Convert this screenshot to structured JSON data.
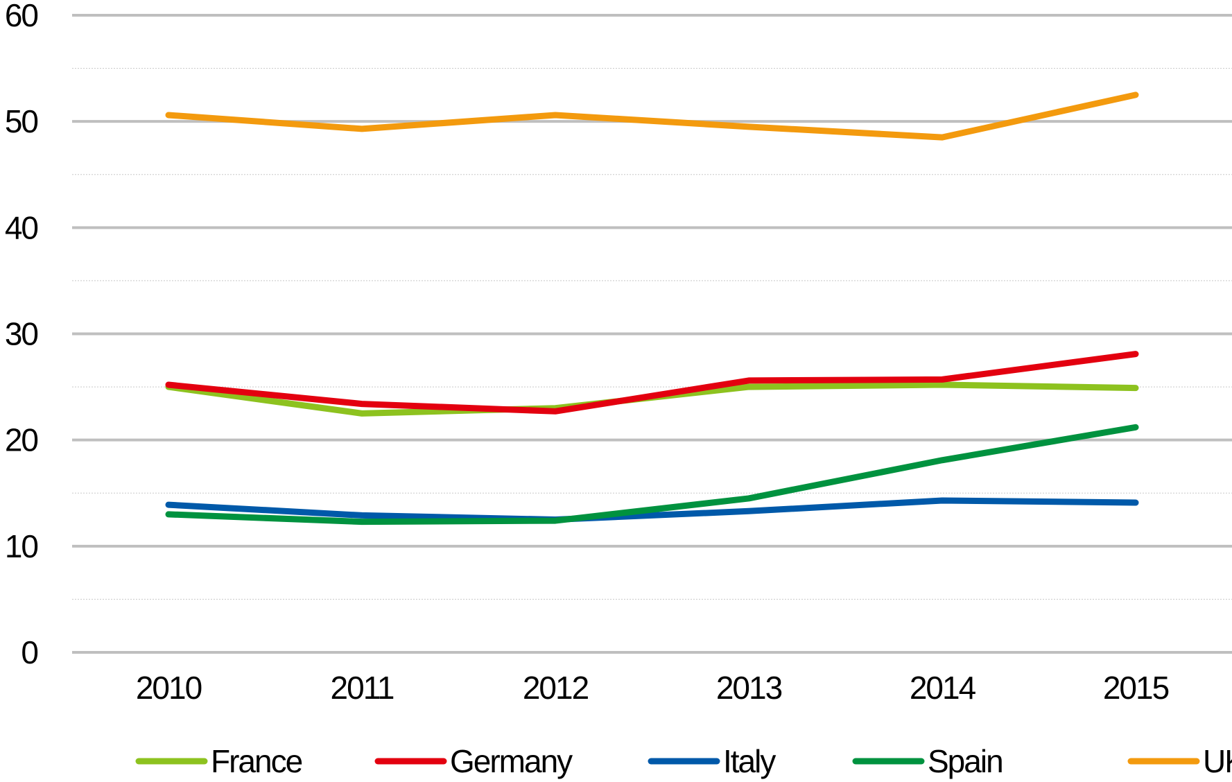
{
  "chart_data": {
    "type": "line",
    "title": "",
    "xlabel": "",
    "ylabel": "",
    "categories": [
      "2010",
      "2011",
      "2012",
      "2013",
      "2014",
      "2015"
    ],
    "ylim": [
      0,
      60
    ],
    "y_ticks": [
      "0",
      "10",
      "20",
      "30",
      "40",
      "50",
      "60"
    ],
    "grid": "horizontal major and dotted minor",
    "legend_position": "bottom",
    "series": [
      {
        "name": "France",
        "color": "#8DC21F",
        "values": [
          25.0,
          22.5,
          23.0,
          25.0,
          25.2,
          24.9
        ]
      },
      {
        "name": "Germany",
        "color": "#E3000F",
        "values": [
          25.2,
          23.4,
          22.7,
          25.6,
          25.7,
          28.1
        ]
      },
      {
        "name": "Italy",
        "color": "#0059A9",
        "values": [
          13.9,
          12.9,
          12.5,
          13.3,
          14.3,
          14.1
        ]
      },
      {
        "name": "Spain",
        "color": "#00923F",
        "values": [
          13.0,
          12.3,
          12.4,
          14.5,
          18.1,
          21.2
        ]
      },
      {
        "name": "UK",
        "color": "#F39A0E",
        "values": [
          50.6,
          49.3,
          50.6,
          49.5,
          48.5,
          52.5
        ]
      }
    ]
  }
}
